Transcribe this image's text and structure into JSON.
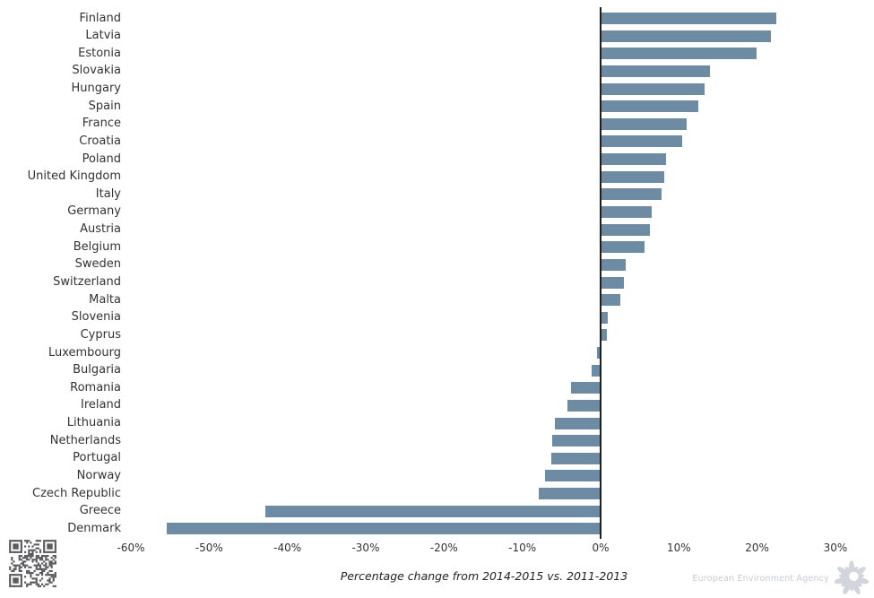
{
  "chart_data": {
    "type": "bar",
    "orientation": "horizontal",
    "title": "",
    "xlabel": "Percentage change from 2014-2015 vs. 2011-2013",
    "ylabel": "",
    "xlim": [
      -60,
      30
    ],
    "x_ticks": [
      "-60%",
      "-50%",
      "-40%",
      "-30%",
      "-20%",
      "-10%",
      "0%",
      "10%",
      "20%",
      "30%"
    ],
    "grid": false,
    "legend": false,
    "bar_color": "#6d8ca4",
    "axis_line_color": "#1f1f1f",
    "categories": [
      "Finland",
      "Latvia",
      "Estonia",
      "Slovakia",
      "Hungary",
      "Spain",
      "France",
      "Croatia",
      "Poland",
      "United Kingdom",
      "Italy",
      "Germany",
      "Austria",
      "Belgium",
      "Sweden",
      "Switzerland",
      "Malta",
      "Slovenia",
      "Cyprus",
      "Luxembourg",
      "Bulgaria",
      "Romania",
      "Ireland",
      "Lithuania",
      "Netherlands",
      "Portugal",
      "Norway",
      "Czech Republic",
      "Greece",
      "Denmark"
    ],
    "values": [
      22.4,
      21.7,
      19.9,
      13.9,
      13.2,
      12.4,
      11.0,
      10.4,
      8.3,
      8.1,
      7.7,
      6.5,
      6.2,
      5.6,
      3.1,
      2.9,
      2.5,
      0.9,
      0.8,
      -0.4,
      -1.1,
      -3.7,
      -4.2,
      -5.8,
      -6.1,
      -6.2,
      -7.0,
      -7.9,
      -42.8,
      -55.4
    ]
  },
  "footer": {
    "agency_label": "European Environment Agency"
  },
  "icons": {
    "qr_code": "qr-code",
    "eea_flower": "eea-flower-logo"
  },
  "colors": {
    "qr_module": "#58585a",
    "logo_gray": "#d2d6dc",
    "text_gray": "#c6cbd3"
  }
}
